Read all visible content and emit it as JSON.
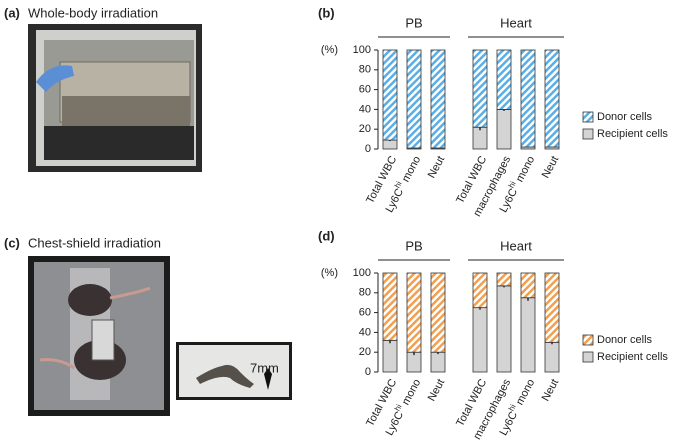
{
  "panels": {
    "a": {
      "label": "(a)",
      "title": "Whole-body irradiation"
    },
    "c": {
      "label": "(c)",
      "title": "Chest-shield irradiation",
      "scale_label": "7mm"
    }
  },
  "chart_data": [
    {
      "type": "stacked_bar",
      "panel_label": "(b)",
      "ylabel": "(%)",
      "groups": [
        {
          "name": "PB",
          "categories": [
            "Total WBC",
            "Ly6Chi mono",
            "Neut"
          ]
        },
        {
          "name": "Heart",
          "categories": [
            "Total WBC",
            "macrophages",
            "Ly6Chi mono",
            "Neut"
          ]
        }
      ],
      "series": [
        {
          "name": "Recipient cells",
          "color": "#d4d4d4",
          "hatch": false,
          "values": [
            9,
            1,
            1,
            22,
            40,
            2,
            2
          ],
          "errors": [
            1,
            0.5,
            0.5,
            3,
            1.5,
            0.5,
            0.5
          ]
        },
        {
          "name": "Donor cells",
          "color": "#5aaee6",
          "hatch": true,
          "values": [
            91,
            99,
            99,
            78,
            60,
            98,
            98
          ]
        }
      ],
      "ylim": [
        0,
        100
      ],
      "yticks": [
        0,
        20,
        40,
        60,
        80,
        100
      ]
    },
    {
      "type": "stacked_bar",
      "panel_label": "(d)",
      "ylabel": "(%)",
      "groups": [
        {
          "name": "PB",
          "categories": [
            "Total WBC",
            "Ly6Chi mono",
            "Neut"
          ]
        },
        {
          "name": "Heart",
          "categories": [
            "Total WBC",
            "macrophages",
            "Ly6Chi mono",
            "Neut"
          ]
        }
      ],
      "series": [
        {
          "name": "Recipient cells",
          "color": "#d4d4d4",
          "hatch": false,
          "values": [
            32,
            20,
            20,
            65,
            87,
            75,
            30
          ],
          "errors": [
            3,
            3,
            2,
            2,
            1.5,
            3,
            2
          ]
        },
        {
          "name": "Donor cells",
          "color": "#f0a050",
          "hatch": true,
          "values": [
            68,
            80,
            80,
            35,
            13,
            25,
            70
          ]
        }
      ],
      "ylim": [
        0,
        100
      ],
      "yticks": [
        0,
        20,
        40,
        60,
        80,
        100
      ]
    }
  ]
}
